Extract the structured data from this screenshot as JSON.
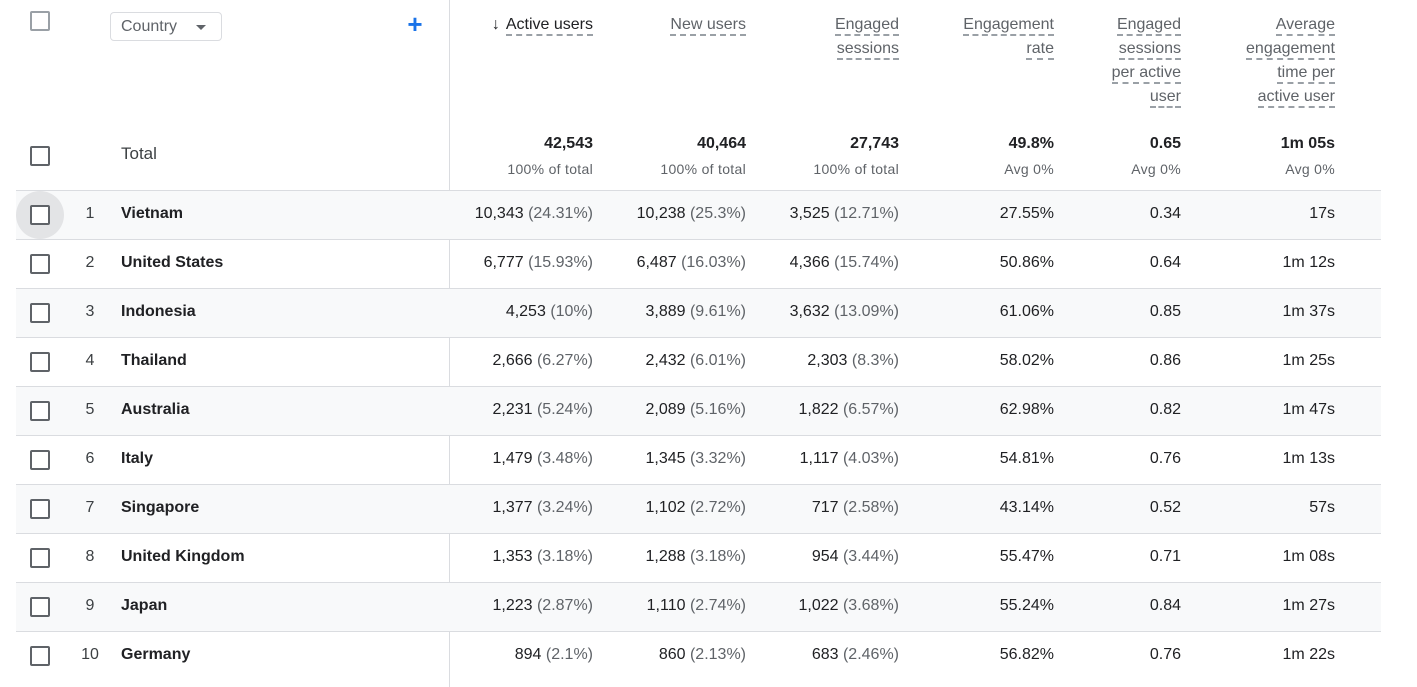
{
  "dimension": {
    "label": "Country",
    "add_icon": "+"
  },
  "columns": [
    {
      "label_lines": [
        "Active users"
      ],
      "sorted": true,
      "sort_icon": "↓"
    },
    {
      "label_lines": [
        "New users"
      ],
      "sorted": false
    },
    {
      "label_lines": [
        "Engaged",
        "sessions"
      ],
      "sorted": false
    },
    {
      "label_lines": [
        "Engagement",
        "rate"
      ],
      "sorted": false
    },
    {
      "label_lines": [
        "Engaged",
        "sessions",
        "per active",
        "user"
      ],
      "sorted": false
    },
    {
      "label_lines": [
        "Average",
        "engagement",
        "time per",
        "active user"
      ],
      "sorted": false
    }
  ],
  "totals": {
    "label": "Total",
    "values": [
      "42,543",
      "40,464",
      "27,743",
      "49.8%",
      "0.65",
      "1m 05s"
    ],
    "subs": [
      "100% of total",
      "100% of total",
      "100% of total",
      "Avg 0%",
      "Avg 0%",
      "Avg 0%"
    ]
  },
  "rows": [
    {
      "rank": "1",
      "country": "Vietnam",
      "active": "10,343",
      "active_pct": "(24.31%)",
      "new": "10,238",
      "new_pct": "(25.3%)",
      "engaged": "3,525",
      "engaged_pct": "(12.71%)",
      "rate": "27.55%",
      "per_user": "0.34",
      "time": "17s"
    },
    {
      "rank": "2",
      "country": "United States",
      "active": "6,777",
      "active_pct": "(15.93%)",
      "new": "6,487",
      "new_pct": "(16.03%)",
      "engaged": "4,366",
      "engaged_pct": "(15.74%)",
      "rate": "50.86%",
      "per_user": "0.64",
      "time": "1m 12s"
    },
    {
      "rank": "3",
      "country": "Indonesia",
      "active": "4,253",
      "active_pct": "(10%)",
      "new": "3,889",
      "new_pct": "(9.61%)",
      "engaged": "3,632",
      "engaged_pct": "(13.09%)",
      "rate": "61.06%",
      "per_user": "0.85",
      "time": "1m 37s"
    },
    {
      "rank": "4",
      "country": "Thailand",
      "active": "2,666",
      "active_pct": "(6.27%)",
      "new": "2,432",
      "new_pct": "(6.01%)",
      "engaged": "2,303",
      "engaged_pct": "(8.3%)",
      "rate": "58.02%",
      "per_user": "0.86",
      "time": "1m 25s"
    },
    {
      "rank": "5",
      "country": "Australia",
      "active": "2,231",
      "active_pct": "(5.24%)",
      "new": "2,089",
      "new_pct": "(5.16%)",
      "engaged": "1,822",
      "engaged_pct": "(6.57%)",
      "rate": "62.98%",
      "per_user": "0.82",
      "time": "1m 47s"
    },
    {
      "rank": "6",
      "country": "Italy",
      "active": "1,479",
      "active_pct": "(3.48%)",
      "new": "1,345",
      "new_pct": "(3.32%)",
      "engaged": "1,117",
      "engaged_pct": "(4.03%)",
      "rate": "54.81%",
      "per_user": "0.76",
      "time": "1m 13s"
    },
    {
      "rank": "7",
      "country": "Singapore",
      "active": "1,377",
      "active_pct": "(3.24%)",
      "new": "1,102",
      "new_pct": "(2.72%)",
      "engaged": "717",
      "engaged_pct": "(2.58%)",
      "rate": "43.14%",
      "per_user": "0.52",
      "time": "57s"
    },
    {
      "rank": "8",
      "country": "United Kingdom",
      "active": "1,353",
      "active_pct": "(3.18%)",
      "new": "1,288",
      "new_pct": "(3.18%)",
      "engaged": "954",
      "engaged_pct": "(3.44%)",
      "rate": "55.47%",
      "per_user": "0.71",
      "time": "1m 08s"
    },
    {
      "rank": "9",
      "country": "Japan",
      "active": "1,223",
      "active_pct": "(2.87%)",
      "new": "1,110",
      "new_pct": "(2.74%)",
      "engaged": "1,022",
      "engaged_pct": "(3.68%)",
      "rate": "55.24%",
      "per_user": "0.84",
      "time": "1m 27s"
    },
    {
      "rank": "10",
      "country": "Germany",
      "active": "894",
      "active_pct": "(2.1%)",
      "new": "860",
      "new_pct": "(2.13%)",
      "engaged": "683",
      "engaged_pct": "(2.46%)",
      "rate": "56.82%",
      "per_user": "0.76",
      "time": "1m 22s"
    }
  ]
}
